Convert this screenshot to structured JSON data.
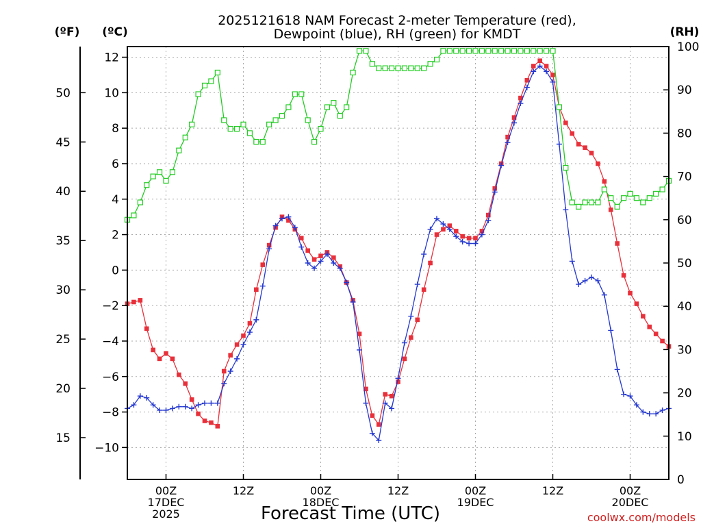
{
  "chart_data": {
    "type": "line",
    "title_lines": [
      "2025121618 NAM Forecast 2-meter Temperature (red),",
      "Dewpoint (blue), RH (green) for KMDT"
    ],
    "xlabel": "Forecast Time (UTC)",
    "credit": "coolwx.com/models",
    "units": {
      "fahrenheit": "(ºF)",
      "celsius": "(ºC)",
      "rh": "(RH)"
    },
    "x_range_hours": [
      0,
      84
    ],
    "x_ticks": [
      {
        "hour": 6,
        "lines": [
          "00Z",
          "17DEC",
          "2025"
        ]
      },
      {
        "hour": 18,
        "lines": [
          "12Z"
        ]
      },
      {
        "hour": 30,
        "lines": [
          "00Z",
          "18DEC"
        ]
      },
      {
        "hour": 42,
        "lines": [
          "12Z"
        ]
      },
      {
        "hour": 54,
        "lines": [
          "00Z",
          "19DEC"
        ]
      },
      {
        "hour": 66,
        "lines": [
          "12Z"
        ]
      },
      {
        "hour": 78,
        "lines": [
          "00Z",
          "20DEC"
        ]
      }
    ],
    "celsius_axis": {
      "range": [
        -11.8,
        12.6
      ],
      "ticks": [
        -10,
        -8,
        -6,
        -4,
        -2,
        0,
        2,
        4,
        6,
        8,
        10,
        12
      ]
    },
    "fahrenheit_axis": {
      "ticks": [
        15,
        20,
        25,
        30,
        35,
        40,
        45,
        50
      ]
    },
    "rh_axis": {
      "range": [
        0,
        100
      ],
      "ticks": [
        0,
        10,
        20,
        30,
        40,
        50,
        60,
        70,
        80,
        90,
        100
      ]
    },
    "grid": true,
    "series": [
      {
        "name": "Temperature",
        "color": "#e8303a",
        "marker": "square",
        "axis": "celsius",
        "points": [
          [
            0,
            -1.9
          ],
          [
            1,
            -1.8
          ],
          [
            2,
            -1.7
          ],
          [
            3,
            -3.3
          ],
          [
            4,
            -4.5
          ],
          [
            5,
            -5.0
          ],
          [
            6,
            -4.7
          ],
          [
            7,
            -5.0
          ],
          [
            8,
            -5.9
          ],
          [
            9,
            -6.4
          ],
          [
            10,
            -7.3
          ],
          [
            11,
            -8.1
          ],
          [
            12,
            -8.5
          ],
          [
            13,
            -8.6
          ],
          [
            14,
            -8.8
          ],
          [
            15,
            -5.7
          ],
          [
            16,
            -4.8
          ],
          [
            17,
            -4.2
          ],
          [
            18,
            -3.7
          ],
          [
            19,
            -3.0
          ],
          [
            20,
            -1.1
          ],
          [
            21,
            0.3
          ],
          [
            22,
            1.4
          ],
          [
            23,
            2.4
          ],
          [
            24,
            3.0
          ],
          [
            25,
            2.8
          ],
          [
            26,
            2.3
          ],
          [
            27,
            1.8
          ],
          [
            28,
            1.1
          ],
          [
            29,
            0.6
          ],
          [
            30,
            0.8
          ],
          [
            31,
            1.0
          ],
          [
            32,
            0.7
          ],
          [
            33,
            0.2
          ],
          [
            34,
            -0.7
          ],
          [
            35,
            -1.7
          ],
          [
            36,
            -3.6
          ],
          [
            37,
            -6.7
          ],
          [
            38,
            -8.2
          ],
          [
            39,
            -8.7
          ],
          [
            40,
            -7.0
          ],
          [
            41,
            -7.1
          ],
          [
            42,
            -6.3
          ],
          [
            43,
            -5.0
          ],
          [
            44,
            -3.8
          ],
          [
            45,
            -2.8
          ],
          [
            46,
            -1.1
          ],
          [
            47,
            0.4
          ],
          [
            48,
            2.0
          ],
          [
            49,
            2.3
          ],
          [
            50,
            2.5
          ],
          [
            51,
            2.2
          ],
          [
            52,
            1.9
          ],
          [
            53,
            1.8
          ],
          [
            54,
            1.8
          ],
          [
            55,
            2.2
          ],
          [
            56,
            3.1
          ],
          [
            57,
            4.6
          ],
          [
            58,
            6.0
          ],
          [
            59,
            7.5
          ],
          [
            60,
            8.6
          ],
          [
            61,
            9.7
          ],
          [
            62,
            10.7
          ],
          [
            63,
            11.5
          ],
          [
            64,
            11.8
          ],
          [
            65,
            11.5
          ],
          [
            66,
            11.0
          ],
          [
            67,
            9.2
          ],
          [
            68,
            8.3
          ],
          [
            69,
            7.7
          ],
          [
            70,
            7.1
          ],
          [
            71,
            6.9
          ],
          [
            72,
            6.6
          ],
          [
            73,
            6.0
          ],
          [
            74,
            5.0
          ],
          [
            75,
            3.4
          ],
          [
            76,
            1.5
          ],
          [
            77,
            -0.3
          ],
          [
            78,
            -1.3
          ],
          [
            79,
            -1.9
          ],
          [
            80,
            -2.6
          ],
          [
            81,
            -3.2
          ],
          [
            82,
            -3.6
          ],
          [
            83,
            -4.0
          ],
          [
            84,
            -4.3
          ]
        ]
      },
      {
        "name": "Dewpoint",
        "color": "#2438d0",
        "marker": "plus",
        "axis": "celsius",
        "points": [
          [
            0,
            -7.8
          ],
          [
            1,
            -7.6
          ],
          [
            2,
            -7.1
          ],
          [
            3,
            -7.2
          ],
          [
            4,
            -7.6
          ],
          [
            5,
            -7.9
          ],
          [
            6,
            -7.9
          ],
          [
            7,
            -7.8
          ],
          [
            8,
            -7.7
          ],
          [
            9,
            -7.7
          ],
          [
            10,
            -7.8
          ],
          [
            11,
            -7.6
          ],
          [
            12,
            -7.5
          ],
          [
            13,
            -7.5
          ],
          [
            14,
            -7.5
          ],
          [
            15,
            -6.4
          ],
          [
            16,
            -5.7
          ],
          [
            17,
            -5.0
          ],
          [
            18,
            -4.2
          ],
          [
            19,
            -3.5
          ],
          [
            20,
            -2.8
          ],
          [
            21,
            -0.9
          ],
          [
            22,
            1.2
          ],
          [
            23,
            2.5
          ],
          [
            24,
            2.9
          ],
          [
            25,
            3.0
          ],
          [
            26,
            2.4
          ],
          [
            27,
            1.3
          ],
          [
            28,
            0.4
          ],
          [
            29,
            0.1
          ],
          [
            30,
            0.5
          ],
          [
            31,
            0.9
          ],
          [
            32,
            0.4
          ],
          [
            33,
            0.1
          ],
          [
            34,
            -0.7
          ],
          [
            35,
            -1.8
          ],
          [
            36,
            -4.5
          ],
          [
            37,
            -7.5
          ],
          [
            38,
            -9.2
          ],
          [
            39,
            -9.6
          ],
          [
            40,
            -7.5
          ],
          [
            41,
            -7.8
          ],
          [
            42,
            -6.1
          ],
          [
            43,
            -4.1
          ],
          [
            44,
            -2.6
          ],
          [
            45,
            -0.8
          ],
          [
            46,
            0.9
          ],
          [
            47,
            2.3
          ],
          [
            48,
            2.9
          ],
          [
            49,
            2.6
          ],
          [
            50,
            2.3
          ],
          [
            51,
            1.9
          ],
          [
            52,
            1.6
          ],
          [
            53,
            1.5
          ],
          [
            54,
            1.5
          ],
          [
            55,
            2.0
          ],
          [
            56,
            2.8
          ],
          [
            57,
            4.4
          ],
          [
            58,
            5.9
          ],
          [
            59,
            7.2
          ],
          [
            60,
            8.3
          ],
          [
            61,
            9.4
          ],
          [
            62,
            10.3
          ],
          [
            63,
            11.2
          ],
          [
            64,
            11.5
          ],
          [
            65,
            11.2
          ],
          [
            66,
            10.6
          ],
          [
            67,
            7.1
          ],
          [
            68,
            3.4
          ],
          [
            69,
            0.5
          ],
          [
            70,
            -0.8
          ],
          [
            71,
            -0.6
          ],
          [
            72,
            -0.4
          ],
          [
            73,
            -0.6
          ],
          [
            74,
            -1.4
          ],
          [
            75,
            -3.4
          ],
          [
            76,
            -5.6
          ],
          [
            77,
            -7.0
          ],
          [
            78,
            -7.1
          ],
          [
            79,
            -7.6
          ],
          [
            80,
            -8.0
          ],
          [
            81,
            -8.1
          ],
          [
            82,
            -8.1
          ],
          [
            83,
            -7.9
          ],
          [
            84,
            -7.8
          ]
        ]
      },
      {
        "name": "RH",
        "color": "#22cc22",
        "marker": "open-square",
        "axis": "rh",
        "points": [
          [
            0,
            60
          ],
          [
            1,
            61
          ],
          [
            2,
            64
          ],
          [
            3,
            68
          ],
          [
            4,
            70
          ],
          [
            5,
            71
          ],
          [
            6,
            69
          ],
          [
            7,
            71
          ],
          [
            8,
            76
          ],
          [
            9,
            79
          ],
          [
            10,
            82
          ],
          [
            11,
            89
          ],
          [
            12,
            91
          ],
          [
            13,
            92
          ],
          [
            14,
            94
          ],
          [
            15,
            83
          ],
          [
            16,
            81
          ],
          [
            17,
            81
          ],
          [
            18,
            82
          ],
          [
            19,
            80
          ],
          [
            20,
            78
          ],
          [
            21,
            78
          ],
          [
            22,
            82
          ],
          [
            23,
            83
          ],
          [
            24,
            84
          ],
          [
            25,
            86
          ],
          [
            26,
            89
          ],
          [
            27,
            89
          ],
          [
            28,
            83
          ],
          [
            29,
            78
          ],
          [
            30,
            81
          ],
          [
            31,
            86
          ],
          [
            32,
            87
          ],
          [
            33,
            84
          ],
          [
            34,
            86
          ],
          [
            35,
            94
          ],
          [
            36,
            99
          ],
          [
            37,
            99
          ],
          [
            38,
            96
          ],
          [
            39,
            95
          ],
          [
            40,
            95
          ],
          [
            41,
            95
          ],
          [
            42,
            95
          ],
          [
            43,
            95
          ],
          [
            44,
            95
          ],
          [
            45,
            95
          ],
          [
            46,
            95
          ],
          [
            47,
            96
          ],
          [
            48,
            97
          ],
          [
            49,
            99
          ],
          [
            50,
            99
          ],
          [
            51,
            99
          ],
          [
            52,
            99
          ],
          [
            53,
            99
          ],
          [
            54,
            99
          ],
          [
            55,
            99
          ],
          [
            56,
            99
          ],
          [
            57,
            99
          ],
          [
            58,
            99
          ],
          [
            59,
            99
          ],
          [
            60,
            99
          ],
          [
            61,
            99
          ],
          [
            62,
            99
          ],
          [
            63,
            99
          ],
          [
            64,
            99
          ],
          [
            65,
            99
          ],
          [
            66,
            99
          ],
          [
            67,
            86
          ],
          [
            68,
            72
          ],
          [
            69,
            64
          ],
          [
            70,
            63
          ],
          [
            71,
            64
          ],
          [
            72,
            64
          ],
          [
            73,
            64
          ],
          [
            74,
            67
          ],
          [
            75,
            65
          ],
          [
            76,
            63
          ],
          [
            77,
            65
          ],
          [
            78,
            66
          ],
          [
            79,
            65
          ],
          [
            80,
            64
          ],
          [
            81,
            65
          ],
          [
            82,
            66
          ],
          [
            83,
            67
          ],
          [
            84,
            69
          ]
        ]
      }
    ]
  }
}
